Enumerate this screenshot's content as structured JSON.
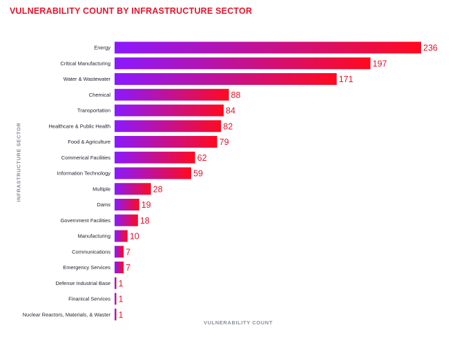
{
  "chart_data": {
    "type": "bar",
    "orientation": "horizontal",
    "title": "VULNERABILITY COUNT BY INFRASTRUCTURE SECTOR",
    "xlabel": "VULNERABILITY COUNT",
    "ylabel": "INFRASTRUCTURE SECTOR",
    "categories": [
      "Energy",
      "Critical Manufacturing",
      "Water & Wastewater",
      "Chemical",
      "Transportation",
      "Healthcare & Public Health",
      "Food & Agriculture",
      "Commerical Facilities",
      "Information Technology",
      "Multiple",
      "Dams",
      "Government Facilities",
      "Manufacturing",
      "Communications",
      "Emergency Services",
      "Defense Industrial Base",
      "Finanical Services",
      "Nuclear Reactors, Materials, & Waster"
    ],
    "values": [
      236,
      197,
      171,
      88,
      84,
      82,
      79,
      62,
      59,
      28,
      19,
      18,
      10,
      7,
      7,
      1,
      1,
      1
    ],
    "xlim": [
      0,
      236
    ],
    "grid": false,
    "legend": "none",
    "bar_gradient": [
      "#8a19ff",
      "#ff0a1e"
    ],
    "value_label_color": "#e8132b",
    "title_color": "#e8132b"
  }
}
